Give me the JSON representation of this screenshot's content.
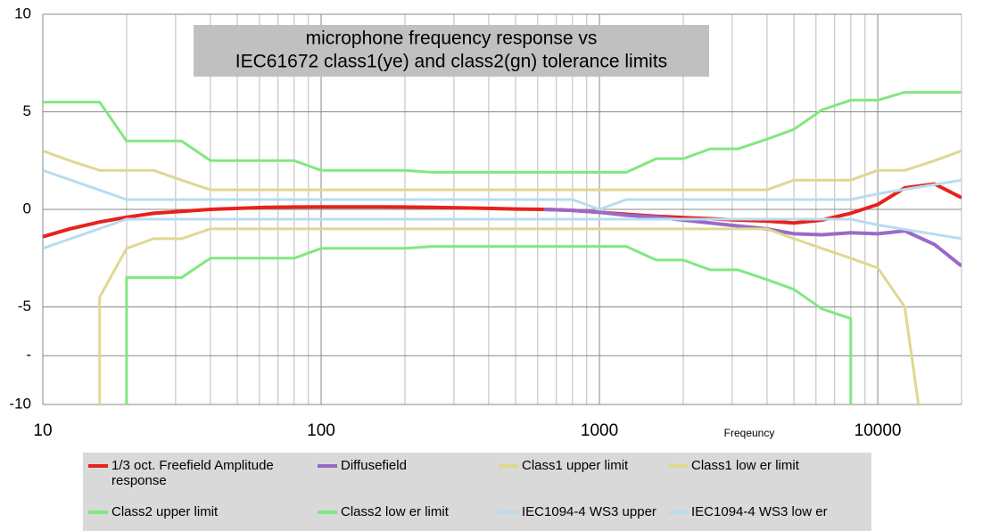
{
  "chart_data": {
    "type": "line",
    "title": "microphone frequency response vs",
    "subtitle": "IEC61672 class1(ye) and class2(gn) tolerance limits",
    "x_label": "Freqeuncy",
    "log_x": true,
    "grid": true,
    "xlim": [
      10,
      20000
    ],
    "xticks": [
      10,
      100,
      1000,
      10000
    ],
    "ylim": [
      -10,
      10
    ],
    "yticks": [
      10,
      5,
      0,
      -5,
      {
        "value": -7.5,
        "label": "-"
      },
      -10
    ],
    "series": [
      {
        "name": "1/3 oct. Freefield Amplitude response",
        "color": "#e8211c",
        "x": [
          10,
          12.5,
          16,
          20,
          25,
          31.5,
          40,
          50,
          63,
          80,
          100,
          125,
          160,
          200,
          250,
          315,
          400,
          500,
          630,
          800,
          1000,
          1250,
          1600,
          2000,
          2500,
          3150,
          4000,
          5000,
          6300,
          8000,
          10000,
          12500,
          16000,
          20000
        ],
        "values": [
          -1.4,
          -1,
          -0.65,
          -0.4,
          -0.2,
          -0.1,
          0,
          0.05,
          0.1,
          0.12,
          0.13,
          0.13,
          0.13,
          0.12,
          0.1,
          0.08,
          0.05,
          0.02,
          0,
          -0.05,
          -0.15,
          -0.25,
          -0.35,
          -0.42,
          -0.48,
          -0.55,
          -0.6,
          -0.7,
          -0.55,
          -0.2,
          0.25,
          1.1,
          1.3,
          0.6
        ]
      },
      {
        "name": "Diffusefield",
        "color": "#9a6ac8",
        "x": [
          630,
          800,
          1000,
          1250,
          1600,
          2000,
          2500,
          3150,
          4000,
          5000,
          6300,
          8000,
          10000,
          12500,
          16000,
          20000
        ],
        "values": [
          0,
          -0.05,
          -0.15,
          -0.3,
          -0.4,
          -0.55,
          -0.7,
          -0.85,
          -1,
          -1.25,
          -1.3,
          -1.2,
          -1.25,
          -1.1,
          -1.8,
          -2.9
        ]
      },
      {
        "name": "Class1 upper limit",
        "color": "#e0d890",
        "x": [
          10,
          12.5,
          16,
          20,
          25,
          31.5,
          40,
          4000,
          5000,
          6300,
          8000,
          10000,
          12500,
          16000,
          20000
        ],
        "values": [
          3,
          2.5,
          2,
          2,
          2,
          1.5,
          1,
          1,
          1.5,
          1.5,
          1.5,
          2,
          2,
          2.5,
          3
        ]
      },
      {
        "name": "Class1 low er limit",
        "color": "#e0d890",
        "x": [
          16,
          16,
          20,
          25,
          31.5,
          40,
          4000,
          5000,
          6300,
          8000,
          10000,
          12500,
          14000
        ],
        "values": [
          -10,
          -4.5,
          -2,
          -1.5,
          -1.5,
          -1,
          -1,
          -1.5,
          -2,
          -2.5,
          -3,
          -5,
          -10
        ]
      },
      {
        "name": "Class2 upper limit",
        "color": "#80e880",
        "x": [
          10,
          12.5,
          16,
          20,
          25,
          31.5,
          40,
          50,
          63,
          80,
          100,
          200,
          250,
          1250,
          1600,
          2000,
          2500,
          3150,
          4000,
          5000,
          6300,
          8000,
          10000,
          12500,
          16000,
          20000
        ],
        "values": [
          5.5,
          5.5,
          5.5,
          3.5,
          3.5,
          3.5,
          2.5,
          2.5,
          2.5,
          2.5,
          2,
          2,
          1.9,
          1.9,
          2.6,
          2.6,
          3.1,
          3.1,
          3.6,
          4.1,
          5.1,
          5.6,
          5.6,
          6,
          6,
          6
        ]
      },
      {
        "name": "Class2 low er limit",
        "color": "#80e880",
        "x": [
          20,
          20,
          25,
          31.5,
          40,
          50,
          63,
          80,
          100,
          200,
          250,
          1250,
          1600,
          2000,
          2500,
          3150,
          4000,
          5000,
          6300,
          8000,
          8000
        ],
        "values": [
          -10,
          -3.5,
          -3.5,
          -3.5,
          -2.5,
          -2.5,
          -2.5,
          -2.5,
          -2,
          -2,
          -1.9,
          -1.9,
          -2.6,
          -2.6,
          -3.1,
          -3.1,
          -3.6,
          -4.1,
          -5.1,
          -5.6,
          -10
        ]
      },
      {
        "name": "IEC1094-4 WS3 upper",
        "color": "#b8dcf0",
        "x": [
          10,
          20,
          800,
          1000,
          1250,
          8000,
          10000,
          20000
        ],
        "values": [
          2,
          0.5,
          0.5,
          0,
          0.5,
          0.5,
          0.8,
          1.5
        ]
      },
      {
        "name": "IEC1094-4 WS3 low er",
        "color": "#b8dcf0",
        "x": [
          10,
          20,
          8000,
          10000,
          20000
        ],
        "values": [
          -2,
          -0.5,
          -0.5,
          -0.8,
          -1.5
        ]
      }
    ]
  }
}
